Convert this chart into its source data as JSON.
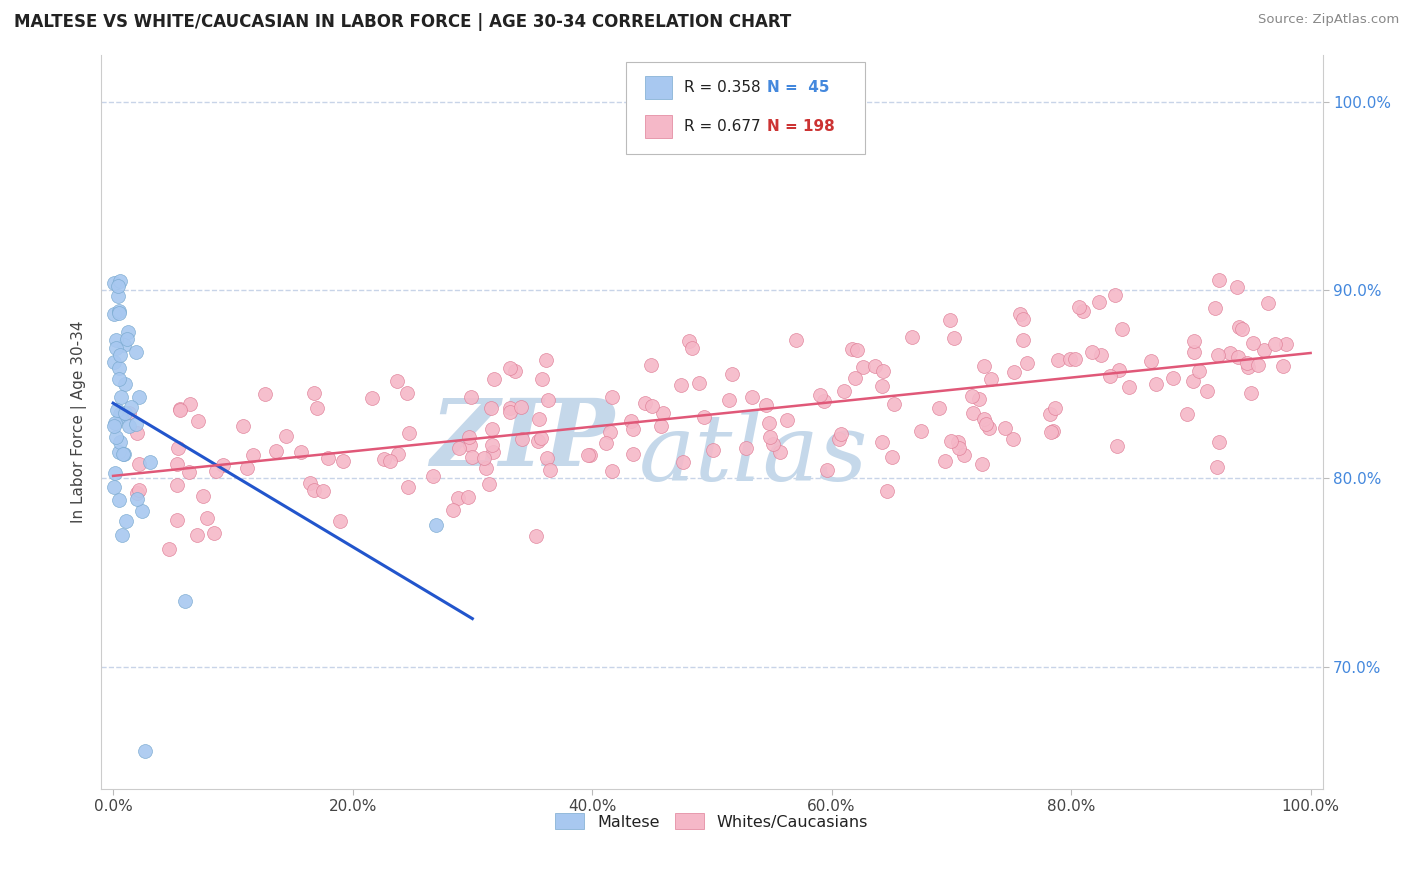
{
  "title": "MALTESE VS WHITE/CAUCASIAN IN LABOR FORCE | AGE 30-34 CORRELATION CHART",
  "source": "Source: ZipAtlas.com",
  "ylabel": "In Labor Force | Age 30-34",
  "xlim": [
    -0.01,
    1.01
  ],
  "ylim": [
    0.635,
    1.025
  ],
  "xtick_vals": [
    0.0,
    0.2,
    0.4,
    0.6,
    0.8,
    1.0
  ],
  "xtick_labels": [
    "0.0%",
    "20.0%",
    "40.0%",
    "60.0%",
    "80.0%",
    "100.0%"
  ],
  "ytick_vals": [
    0.7,
    0.8,
    0.9,
    1.0
  ],
  "ytick_labels": [
    "70.0%",
    "80.0%",
    "90.0%",
    "100.0%"
  ],
  "maltese_color": "#a8c8f0",
  "maltese_edge": "#7aaad0",
  "white_color": "#f5b8c8",
  "white_edge": "#e08098",
  "trend_blue": "#2255cc",
  "trend_pink": "#e05878",
  "legend_R_blue": "R = 0.358",
  "legend_N_blue": "N =  45",
  "legend_R_pink": "R = 0.677",
  "legend_N_pink": "N = 198",
  "watermark_top": "ZIP",
  "watermark_bot": "atlas",
  "watermark_color": "#c5d8ea",
  "background": "#ffffff",
  "grid_color": "#c8d4e8",
  "title_color": "#222222",
  "source_color": "#888888",
  "ylabel_color": "#444444",
  "ytick_color": "#4488dd",
  "xtick_color": "#444444",
  "legend_text_color": "#222222",
  "legend_N_color": "#cc3333"
}
